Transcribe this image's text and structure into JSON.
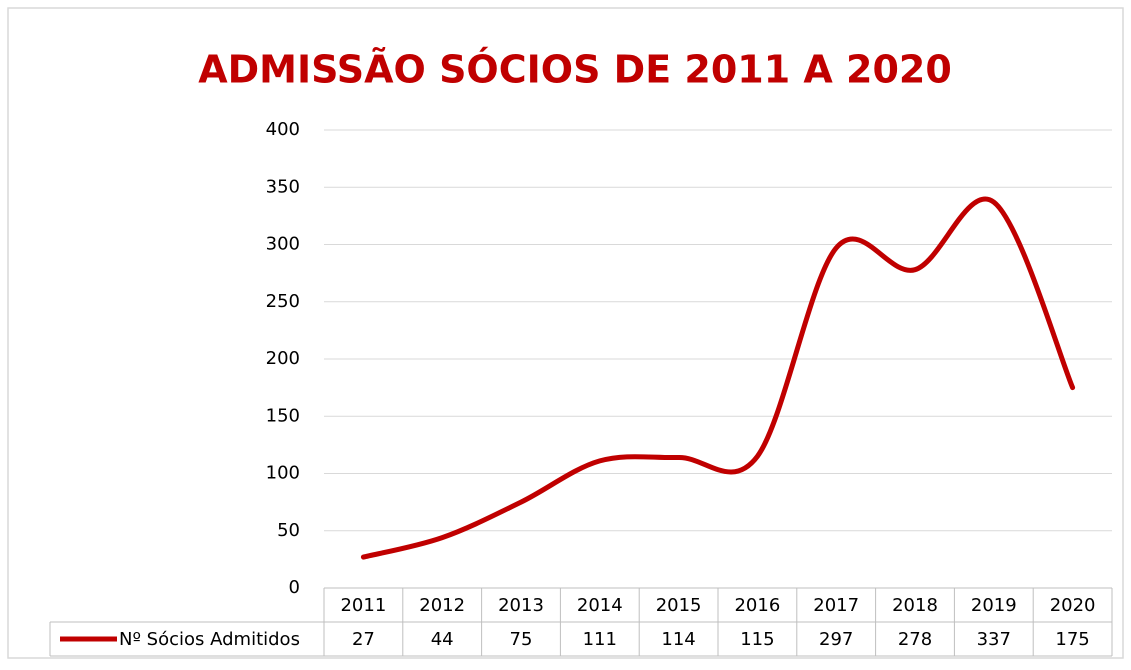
{
  "chart_data": {
    "type": "line",
    "title": "ADMISSÃO SÓCIOS DE 2011 A 2020",
    "categories": [
      "2011",
      "2012",
      "2013",
      "2014",
      "2015",
      "2016",
      "2017",
      "2018",
      "2019",
      "2020"
    ],
    "series": [
      {
        "name": "Nº Sócios Admitidos",
        "color": "#c00000",
        "values": [
          27,
          44,
          75,
          111,
          114,
          115,
          297,
          278,
          337,
          175
        ]
      }
    ],
    "ylim": [
      0,
      400
    ],
    "yticks": [
      0,
      50,
      100,
      150,
      200,
      250,
      300,
      350,
      400
    ],
    "grid": true,
    "smooth": true,
    "data_table": true
  }
}
